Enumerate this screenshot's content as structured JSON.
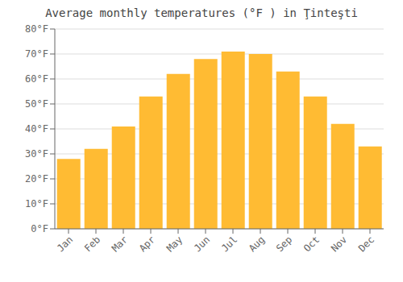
{
  "chart_data": {
    "type": "bar",
    "title": "Average monthly temperatures (°F ) in Ţinteşti",
    "categories": [
      "Jan",
      "Feb",
      "Mar",
      "Apr",
      "May",
      "Jun",
      "Jul",
      "Aug",
      "Sep",
      "Oct",
      "Nov",
      "Dec"
    ],
    "values": [
      28,
      32,
      41,
      53,
      62,
      68,
      71,
      70,
      63,
      53,
      42,
      33
    ],
    "color": "#FFBB33",
    "ylim": [
      0,
      80
    ],
    "yticks": [
      {
        "value": 0,
        "label": "0°F"
      },
      {
        "value": 10,
        "label": "10°F"
      },
      {
        "value": 20,
        "label": "20°F"
      },
      {
        "value": 30,
        "label": "30°F"
      },
      {
        "value": 40,
        "label": "40°F"
      },
      {
        "value": 50,
        "label": "50°F"
      },
      {
        "value": 60,
        "label": "60°F"
      },
      {
        "value": 70,
        "label": "70°F"
      },
      {
        "value": 80,
        "label": "80°F"
      }
    ],
    "grid": true
  }
}
